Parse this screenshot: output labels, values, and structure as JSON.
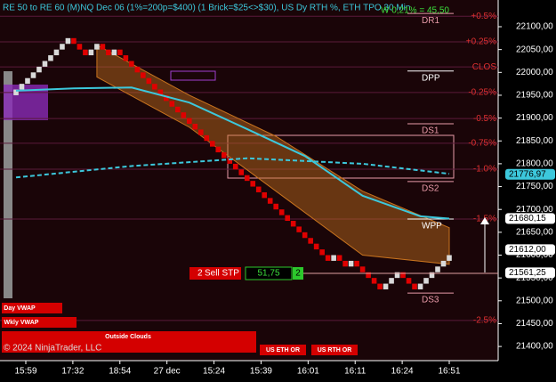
{
  "header": {
    "title": "RE 50 to RE 60 (M)NQ Dec 06 (1%=200p=$400) (1 Brick=$25<>$30), US Dy RTH %, ETH TPO 30 Min",
    "stat": "W 0,21% = 45,50",
    "copyright": "© 2024 NinjaTrader, LLC"
  },
  "buttons": [
    "Day VWAP",
    "Wkly VWAP",
    "Outside Clouds",
    "US ETH OR",
    "US RTH OR"
  ],
  "order": {
    "quantity": 2,
    "action": "Sell STP",
    "offset": "51,75",
    "count": 2
  },
  "chart_data": {
    "type": "renko",
    "categories": [
      "15:59",
      "17:32",
      "18:54",
      "27 dec",
      "15:24",
      "15:39",
      "16:01",
      "16:11",
      "16:24",
      "16:51"
    ],
    "open": 21950,
    "closes": [
      21962.5,
      21975,
      21987.5,
      22000,
      22012.5,
      22025,
      22037.5,
      22050,
      22062.5,
      22075,
      22062.5,
      22050,
      22037.5,
      22050,
      22062.5,
      22050,
      22037.5,
      22050,
      22037.5,
      22025,
      22012.5,
      22000,
      21987.5,
      21975,
      21962.5,
      21950,
      21937.5,
      21925,
      21912.5,
      21900,
      21887.5,
      21875,
      21862.5,
      21850,
      21837.5,
      21825,
      21812.5,
      21800,
      21787.5,
      21775,
      21762.5,
      21750,
      21737.5,
      21725,
      21712.5,
      21700,
      21687.5,
      21675,
      21662.5,
      21650,
      21637.5,
      21625,
      21612.5,
      21600,
      21587.5,
      21600,
      21587.5,
      21575,
      21587.5,
      21575,
      21562.5,
      21550,
      21537.5,
      21525,
      21537.5,
      21550,
      21562.5,
      21550,
      21537.5,
      21525,
      21537.5,
      21550,
      21562.5,
      21575,
      21587.5,
      21600
    ],
    "up_color": "#d9d9d9",
    "down_color": "#e00000",
    "ylim": [
      21369,
      22158.5
    ],
    "yticks": [
      {
        "value": 22100,
        "label": "22100,00"
      },
      {
        "value": 22050,
        "label": "22050,00"
      },
      {
        "value": 22000,
        "label": "22000,00"
      },
      {
        "value": 21950,
        "label": "21950,00"
      },
      {
        "value": 21900,
        "label": "21900,00"
      },
      {
        "value": 21850,
        "label": "21850,00"
      },
      {
        "value": 21800,
        "label": "21800,00"
      },
      {
        "value": 21750,
        "label": "21750,00"
      },
      {
        "value": 21700,
        "label": "21700,00"
      },
      {
        "value": 21650,
        "label": "21650,00"
      },
      {
        "value": 21600,
        "label": "21600,00"
      },
      {
        "value": 21550,
        "label": "21550,00"
      },
      {
        "value": 21500,
        "label": "21500,00"
      },
      {
        "value": 21450,
        "label": "21450,00"
      },
      {
        "value": 21400,
        "label": "21400,00"
      }
    ],
    "cloud": {
      "color": "#c8731e",
      "x": [
        14,
        30,
        45,
        60,
        75
      ],
      "upper": [
        22060,
        21950,
        21860,
        21740,
        21660
      ],
      "lower": [
        21990,
        21880,
        21740,
        21600,
        21580
      ]
    },
    "vwap": {
      "color": "#3cc8dc",
      "x": [
        0,
        10,
        20,
        30,
        40,
        50,
        60,
        70,
        75
      ],
      "values": [
        21960,
        21965,
        21967,
        21934,
        21876,
        21817,
        21730,
        21685,
        21680
      ]
    },
    "vwap_weekly": {
      "color": "#3cc8dc",
      "x": [
        0,
        20,
        40,
        60,
        75
      ],
      "values": [
        21770,
        21795,
        21812,
        21800,
        21778
      ]
    },
    "levels": [
      {
        "label": "DR1",
        "value": 22129,
        "color": "#e89aa8"
      },
      {
        "label": "DPP",
        "value": 22003,
        "color": "#ffffff"
      },
      {
        "label": "DS1",
        "value": 21887.5,
        "color": "#e89aa8"
      },
      {
        "label": "DS2",
        "value": 21761,
        "color": "#e89aa8"
      },
      {
        "label": "WPP",
        "value": 21679,
        "color": "#ffffff"
      },
      {
        "label": "DS3",
        "value": 21517,
        "color": "#e89aa8"
      }
    ],
    "pct_levels": [
      {
        "label": "+0.5%",
        "value": 22123
      },
      {
        "label": "+0.25%",
        "value": 22067
      },
      {
        "label": "CLOS",
        "value": 22012
      },
      {
        "label": "-0.25%",
        "value": 21956
      },
      {
        "label": "-0.5%",
        "value": 21899
      },
      {
        "label": "-0.75%",
        "value": 21845
      },
      {
        "label": "-1.0%",
        "value": 21788
      },
      {
        "label": "-1.5%",
        "value": 21679
      },
      {
        "label": "-2.5%",
        "value": 21457
      }
    ],
    "price_markers": [
      {
        "label": "21776,97",
        "value": 21776.97,
        "color": "#3cc8dc"
      },
      {
        "label": "21680,15",
        "value": 21680.15,
        "color": "#ffffff"
      },
      {
        "label": "21612,00",
        "value": 21612,
        "color": "#ffffff"
      },
      {
        "label": "21561,25",
        "value": 21561.25,
        "color": "#ffffff"
      }
    ]
  }
}
